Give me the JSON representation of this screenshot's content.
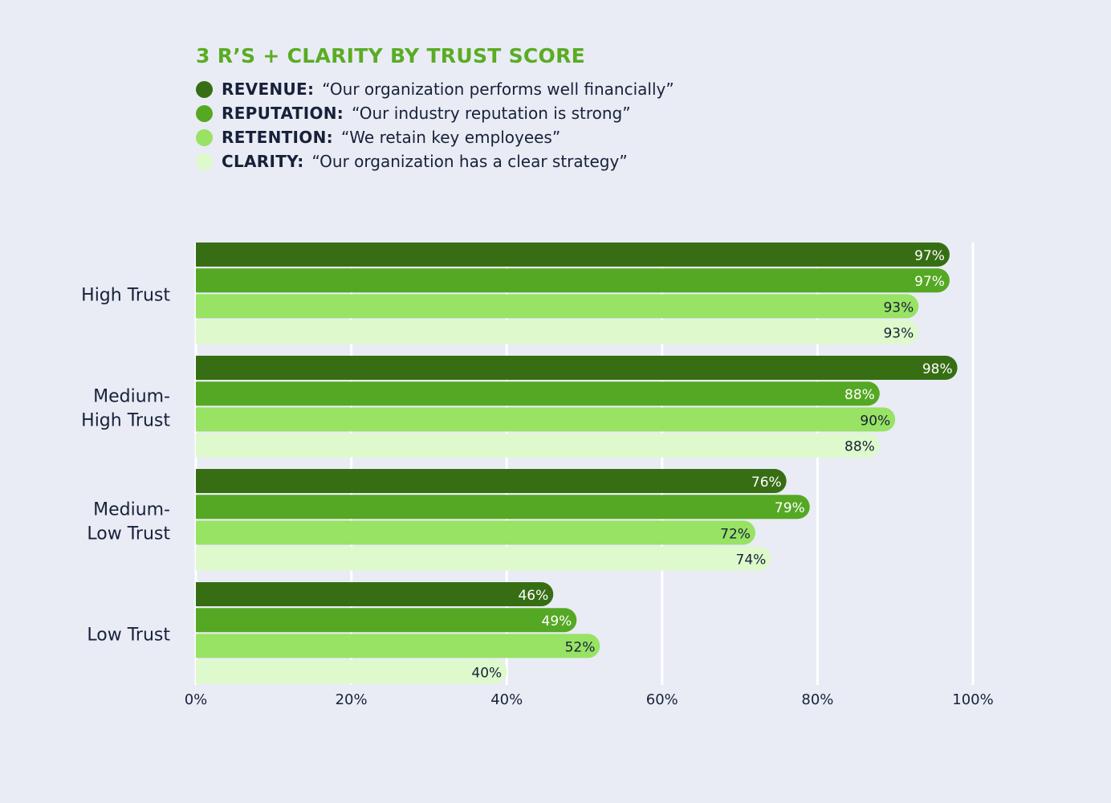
{
  "chart_data": {
    "type": "bar",
    "orientation": "horizontal",
    "title": "3 R’S + CLARITY BY TRUST SCORE",
    "categories": [
      "High Trust",
      "Medium-\nHigh Trust",
      "Medium-\nLow Trust",
      "Low Trust"
    ],
    "series": [
      {
        "name": "REVENUE:",
        "description": "“Our organization performs well financially”",
        "color": "#376e14",
        "label_color": "#ffffff",
        "values": [
          97,
          98,
          76,
          46
        ]
      },
      {
        "name": "REPUTATION:",
        "description": "“Our industry reputation is strong”",
        "color": "#55a823",
        "label_color": "#ffffff",
        "values": [
          97,
          88,
          79,
          49
        ]
      },
      {
        "name": "RETENTION:",
        "description": "“We retain key employees”",
        "color": "#98e264",
        "label_color": "#17213a",
        "values": [
          93,
          90,
          72,
          52
        ]
      },
      {
        "name": "CLARITY:",
        "description": "“Our organization has a clear strategy”",
        "color": "#def9cb",
        "label_color": "#17213a",
        "values": [
          93,
          88,
          74,
          40
        ]
      }
    ],
    "xlim": [
      0,
      100
    ],
    "xticks": [
      0,
      20,
      40,
      60,
      80,
      100
    ],
    "tick_suffix": "%",
    "value_suffix": "%",
    "grid": true,
    "legend_position": "top-left"
  }
}
